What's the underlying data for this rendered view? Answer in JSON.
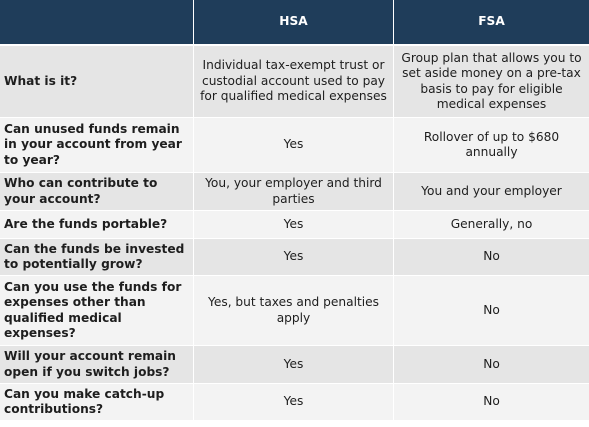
{
  "header": {
    "corner": "",
    "col_hsa": "HSA",
    "col_fsa": "FSA"
  },
  "rows": [
    {
      "question": "What is it?",
      "hsa": "Individual tax-exempt trust or custodial account used to pay for qualified medical expenses",
      "fsa": "Group plan that allows you to set aside money on a pre-tax basis to pay for eligible medical expenses"
    },
    {
      "question": "Can unused funds remain in your account from year to year?",
      "hsa": "Yes",
      "fsa": "Rollover of up to $680 annually"
    },
    {
      "question": "Who can contribute to your account?",
      "hsa": "You, your employer and third parties",
      "fsa": "You and your employer"
    },
    {
      "question": "Are the funds portable?",
      "hsa": "Yes",
      "fsa": "Generally, no"
    },
    {
      "question": "Can the funds be invested to potentially grow?",
      "hsa": "Yes",
      "fsa": "No"
    },
    {
      "question": "Can you use the funds for expenses other than qualified medical expenses?",
      "hsa": "Yes, but taxes and penalties apply",
      "fsa": "No"
    },
    {
      "question": "Will your account remain open if you switch jobs?",
      "hsa": "Yes",
      "fsa": "No"
    },
    {
      "question": "Can you make catch-up contributions?",
      "hsa": "Yes",
      "fsa": "No"
    }
  ]
}
